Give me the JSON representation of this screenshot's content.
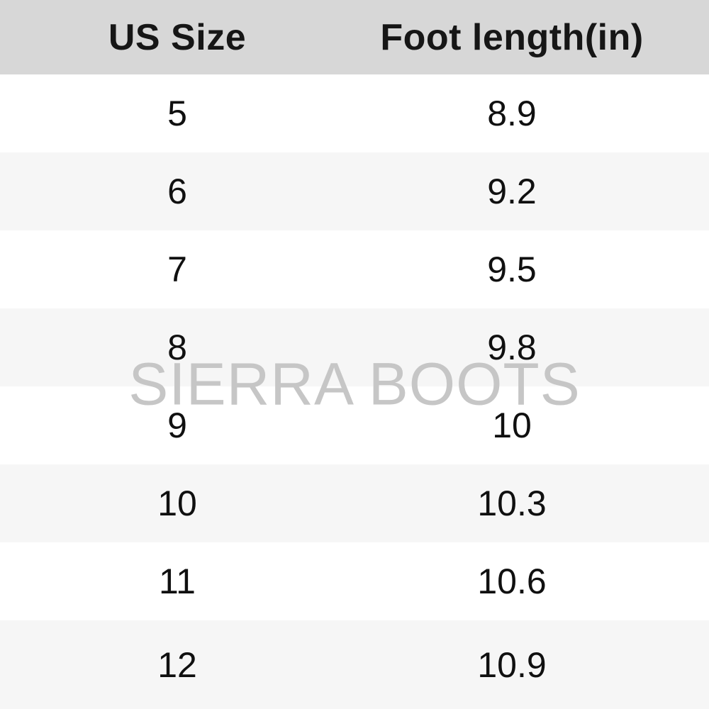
{
  "watermark": "SIERRA BOOTS",
  "colors": {
    "header_bg": "#d7d7d7",
    "row_bg": "#ffffff",
    "row_alt_bg": "#f6f6f6",
    "text": "#101010",
    "watermark": "#c6c6c6"
  },
  "table": {
    "columns": [
      "US Size",
      "Foot length(in)"
    ],
    "rows": [
      [
        "5",
        "8.9"
      ],
      [
        "6",
        "9.2"
      ],
      [
        "7",
        "9.5"
      ],
      [
        "8",
        "9.8"
      ],
      [
        "9",
        "10"
      ],
      [
        "10",
        "10.3"
      ],
      [
        "11",
        "10.6"
      ],
      [
        "12",
        "10.9"
      ]
    ]
  },
  "chart_data": {
    "type": "table",
    "title": "",
    "columns": [
      "US Size",
      "Foot length(in)"
    ],
    "rows": [
      [
        5,
        8.9
      ],
      [
        6,
        9.2
      ],
      [
        7,
        9.5
      ],
      [
        8,
        9.8
      ],
      [
        9,
        10
      ],
      [
        10,
        10.3
      ],
      [
        11,
        10.6
      ],
      [
        12,
        10.9
      ]
    ],
    "watermark": "SIERRA BOOTS",
    "layout": {
      "header_background": "#d7d7d7",
      "alternating_rows": true,
      "grid": false
    }
  }
}
